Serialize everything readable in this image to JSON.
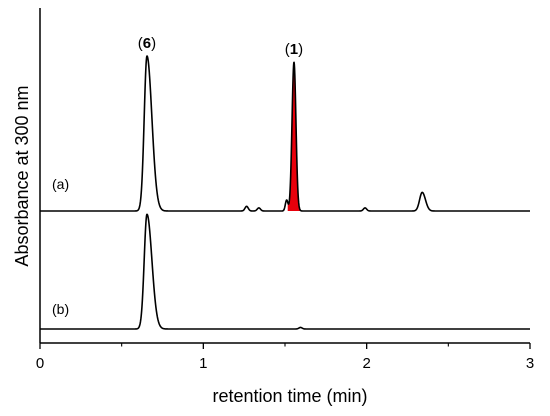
{
  "chart_data": {
    "type": "line",
    "title": "",
    "xlabel": "retention time (min)",
    "ylabel": "Absorbance at 300 nm",
    "xlim": [
      0,
      3
    ],
    "xticks": [
      "0",
      "1",
      "2",
      "3"
    ],
    "yticks": [],
    "grid": false,
    "highlight_color": "#e8000b",
    "series": [
      {
        "label": "(a)",
        "peaks": [
          {
            "x": 0.655,
            "height": 1.0,
            "width": 0.017,
            "tail": 0.03,
            "label_pre": "(",
            "label_num": "6",
            "label_post": ")"
          },
          {
            "x": 1.265,
            "height": 0.03,
            "width": 0.01,
            "tail": 0.01
          },
          {
            "x": 1.34,
            "height": 0.02,
            "width": 0.01,
            "tail": 0.01
          },
          {
            "x": 1.51,
            "height": 0.07,
            "width": 0.008,
            "tail": 0.008
          },
          {
            "x": 1.555,
            "height": 0.96,
            "width": 0.012,
            "tail": 0.012,
            "label_pre": "(",
            "label_num": "1",
            "label_post": ")",
            "highlight": true
          },
          {
            "x": 1.99,
            "height": 0.02,
            "width": 0.01,
            "tail": 0.01
          },
          {
            "x": 2.34,
            "height": 0.12,
            "width": 0.016,
            "tail": 0.02
          }
        ]
      },
      {
        "label": "(b)",
        "peaks": [
          {
            "x": 0.655,
            "height": 0.74,
            "width": 0.017,
            "tail": 0.03
          },
          {
            "x": 1.595,
            "height": 0.01,
            "width": 0.01,
            "tail": 0.01
          }
        ]
      }
    ]
  }
}
